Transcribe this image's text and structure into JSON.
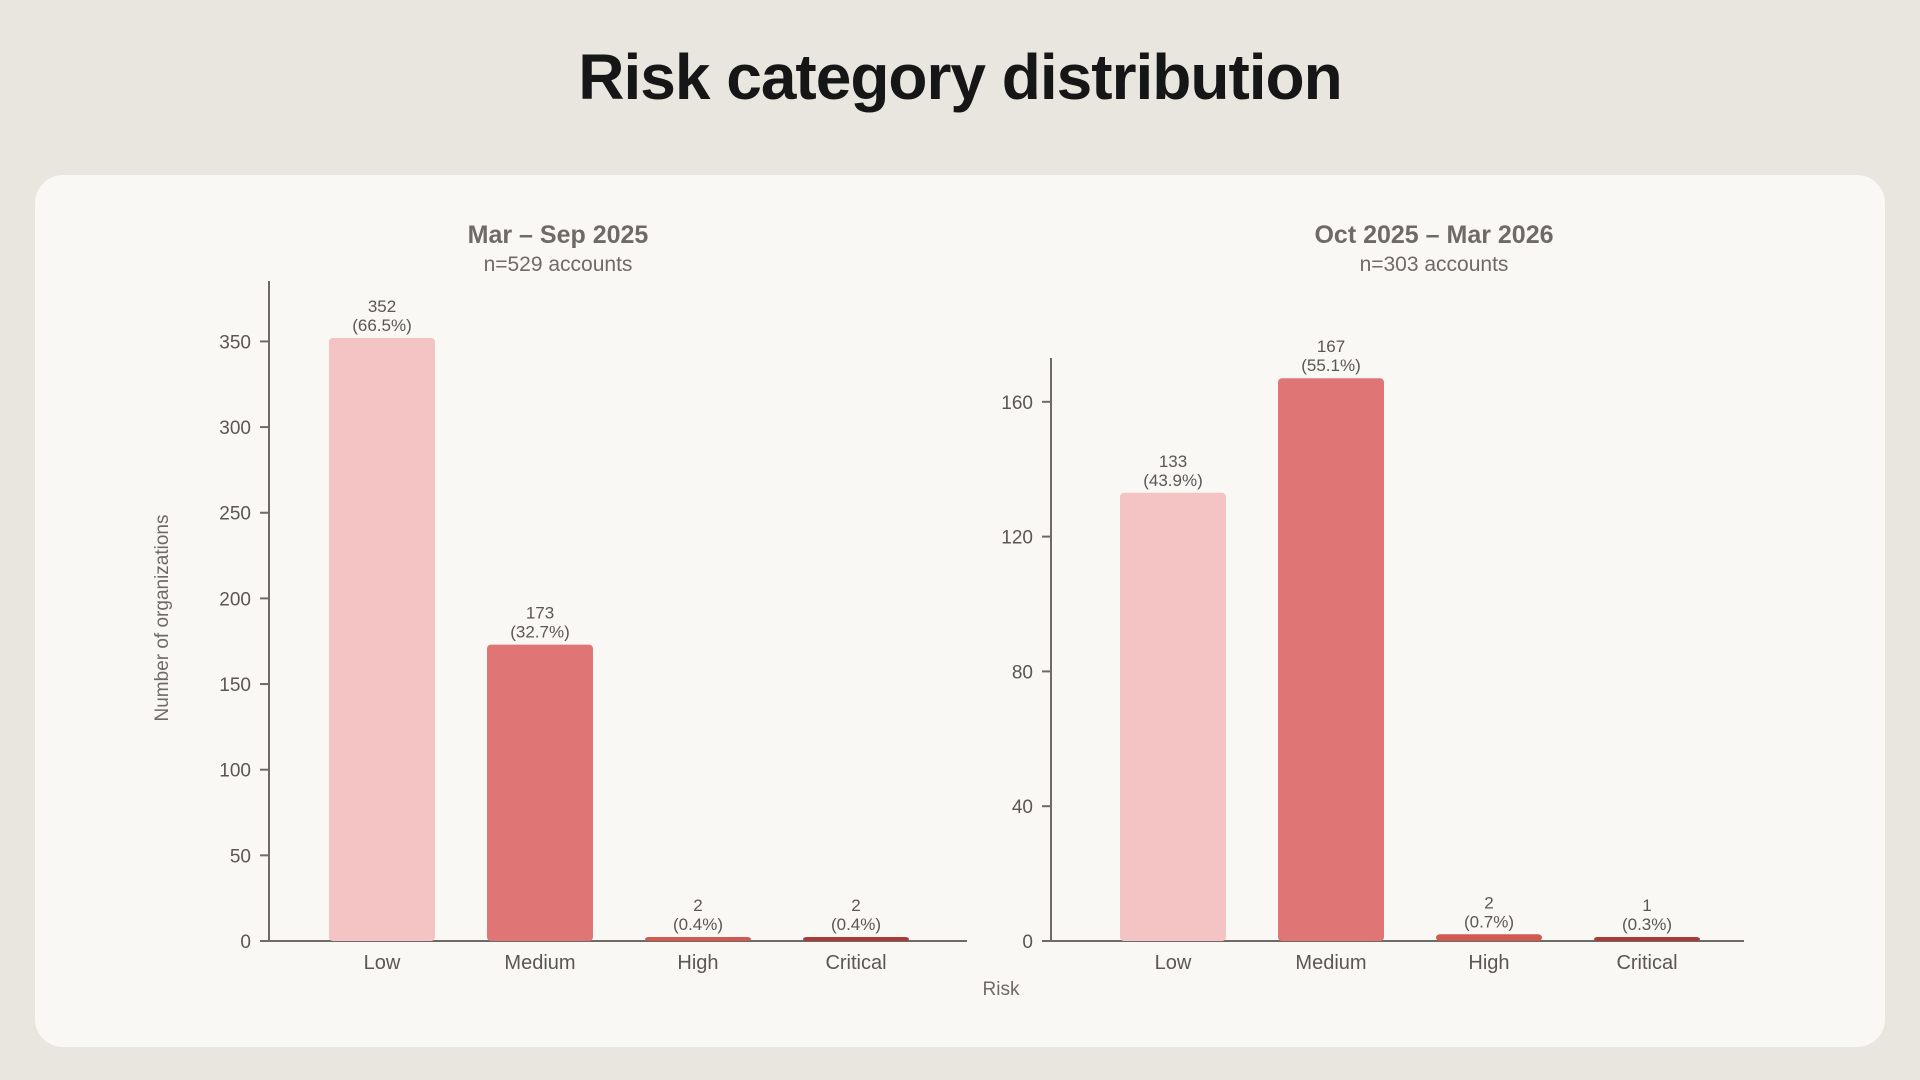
{
  "page": {
    "title": "Risk category distribution"
  },
  "shared_axes": {
    "xlabel": "Risk",
    "ylabel": "Number of organizations"
  },
  "colors": {
    "Low": "#F4C3C3",
    "Medium": "#E07575",
    "High": "#D05A52",
    "Critical": "#A83A37"
  },
  "chart_data": [
    {
      "type": "bar",
      "title": "Mar – Sep 2025",
      "subtitle": "n=529 accounts",
      "categories": [
        "Low",
        "Medium",
        "High",
        "Critical"
      ],
      "values": [
        352,
        173,
        2,
        2
      ],
      "data_labels": [
        "352",
        "173",
        "2",
        "2"
      ],
      "percent_labels": [
        "(66.5%)",
        "(32.7%)",
        "(0.4%)",
        "(0.4%)"
      ],
      "ylim": [
        0,
        352
      ],
      "yticks": [
        0,
        50,
        100,
        150,
        200,
        250,
        300,
        350
      ],
      "ylabel": "Number of organizations",
      "grid": false
    },
    {
      "type": "bar",
      "title": "Oct 2025 – Mar 2026",
      "subtitle": "n=303 accounts",
      "categories": [
        "Low",
        "Medium",
        "High",
        "Critical"
      ],
      "values": [
        133,
        167,
        2,
        1
      ],
      "data_labels": [
        "133",
        "167",
        "2",
        "1"
      ],
      "percent_labels": [
        "(43.9%)",
        "(55.1%)",
        "(0.7%)",
        "(0.3%)"
      ],
      "ylim": [
        0,
        173
      ],
      "yticks": [
        0,
        40,
        80,
        120,
        160
      ],
      "grid": false
    }
  ]
}
